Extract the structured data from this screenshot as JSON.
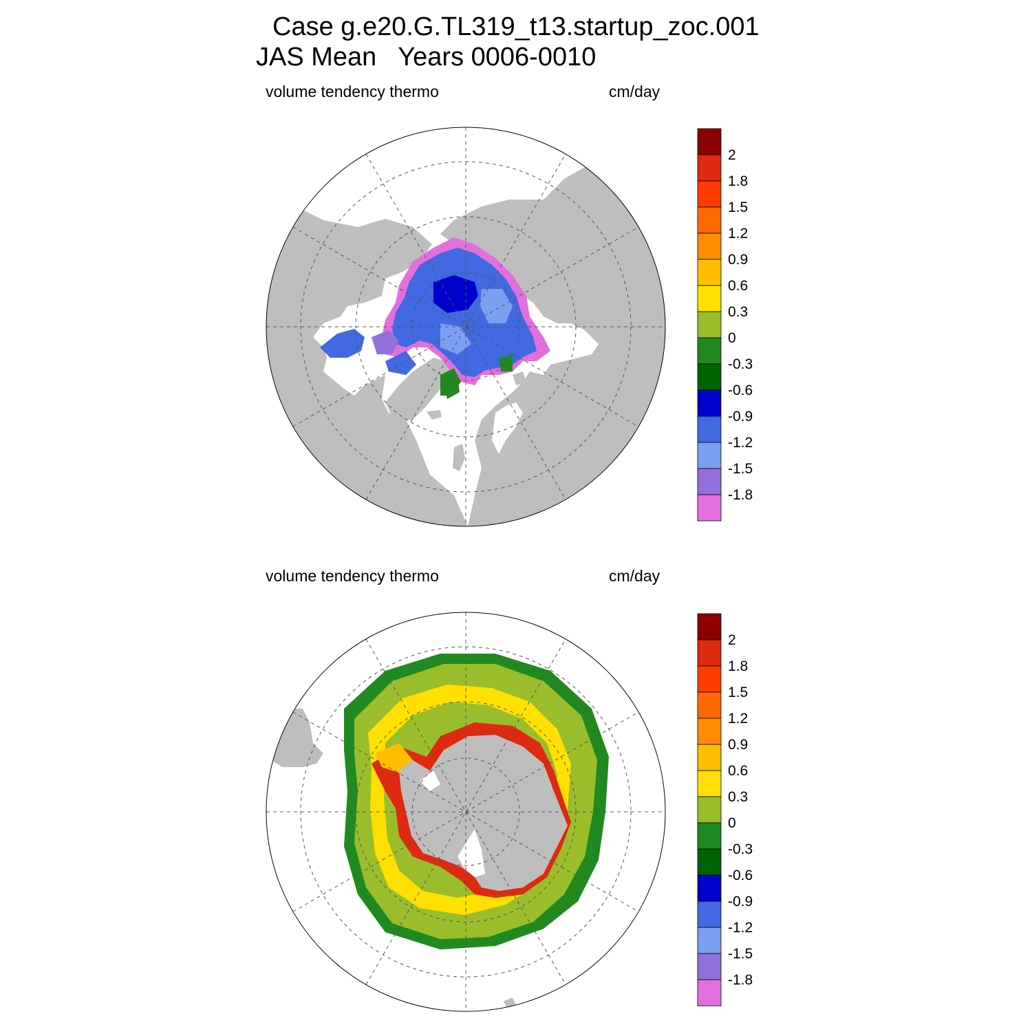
{
  "title": {
    "line1": "Case g.e20.G.TL319_t13.startup_zoc.001",
    "line2": "JAS Mean   Years 0006-0010"
  },
  "panels": [
    {
      "id": "north",
      "left_label": "volume tendency thermo",
      "right_label": "cm/day"
    },
    {
      "id": "south",
      "left_label": "volume tendency thermo",
      "right_label": "cm/day"
    }
  ],
  "colorbar": {
    "colors": [
      "#8b0000",
      "#dd2a10",
      "#ff3c00",
      "#ff6a00",
      "#ff8c00",
      "#ffbf00",
      "#ffe000",
      "#9abd2c",
      "#208a20",
      "#006400",
      "#0000cd",
      "#4169e1",
      "#7b9ff0",
      "#9370db",
      "#e36fdc"
    ],
    "labels": [
      "2",
      "1.8",
      "1.5",
      "1.2",
      "0.9",
      "0.6",
      "0.3",
      "0",
      "-0.3",
      "-0.6",
      "-0.9",
      "-1.2",
      "-1.5",
      "-1.8"
    ]
  },
  "colors": {
    "land": "#bebebe",
    "ocean": "#ffffff",
    "grid": "#555555"
  }
}
